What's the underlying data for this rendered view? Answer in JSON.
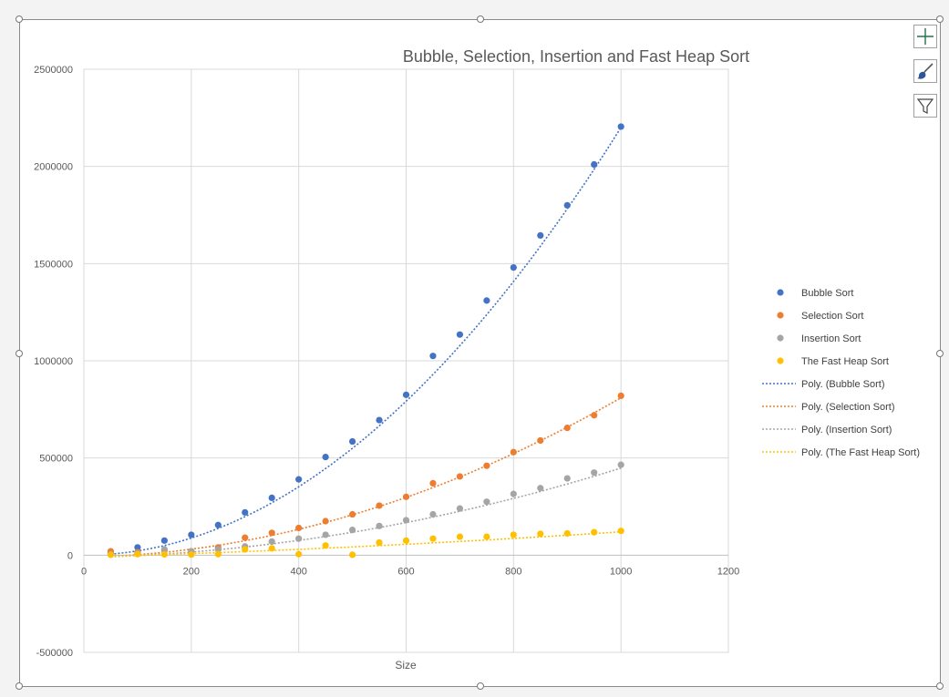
{
  "toolbar": {
    "buttons": [
      {
        "name": "chart-elements-button",
        "icon": "plus-icon",
        "color": "#217346"
      },
      {
        "name": "chart-styles-button",
        "icon": "paintbrush-icon",
        "color": "#2b579a"
      },
      {
        "name": "chart-filters-button",
        "icon": "funnel-icon",
        "color": "#444444"
      }
    ]
  },
  "chart_data": {
    "type": "scatter",
    "title": "Bubble, Selection, Insertion and Fast Heap Sort",
    "xlabel": "Size",
    "ylabel": "",
    "xlim": [
      0,
      1200
    ],
    "ylim": [
      -500000,
      2500000
    ],
    "xticks": [
      0,
      200,
      400,
      600,
      800,
      1000,
      1200
    ],
    "yticks": [
      -500000,
      0,
      500000,
      1000000,
      1500000,
      2000000,
      2500000
    ],
    "grid": true,
    "legend_position": "right",
    "series": [
      {
        "name": "Bubble Sort",
        "color": "#4472c4",
        "x": [
          50,
          100,
          150,
          200,
          250,
          300,
          350,
          400,
          450,
          500,
          550,
          600,
          650,
          700,
          750,
          800,
          850,
          900,
          950,
          1000
        ],
        "y": [
          8000,
          40000,
          75000,
          105000,
          155000,
          220000,
          295000,
          390000,
          505000,
          585000,
          695000,
          825000,
          1025000,
          1135000,
          1310000,
          1480000,
          1645000,
          1800000,
          2010000,
          2205000
        ]
      },
      {
        "name": "Selection Sort",
        "color": "#ed7d31",
        "x": [
          50,
          100,
          150,
          200,
          250,
          300,
          350,
          400,
          450,
          500,
          550,
          600,
          650,
          700,
          750,
          800,
          850,
          900,
          950,
          1000
        ],
        "y": [
          20000,
          15000,
          25000,
          20000,
          40000,
          90000,
          115000,
          140000,
          175000,
          210000,
          255000,
          300000,
          370000,
          405000,
          460000,
          530000,
          590000,
          655000,
          720000,
          820000
        ]
      },
      {
        "name": "Insertion Sort",
        "color": "#a5a5a5",
        "x": [
          50,
          100,
          150,
          200,
          250,
          300,
          350,
          400,
          450,
          500,
          550,
          600,
          650,
          700,
          750,
          800,
          850,
          900,
          950,
          1000
        ],
        "y": [
          5000,
          10000,
          30000,
          20000,
          30000,
          45000,
          70000,
          85000,
          105000,
          130000,
          150000,
          180000,
          210000,
          240000,
          275000,
          315000,
          345000,
          395000,
          425000,
          465000
        ]
      },
      {
        "name": "The Fast Heap Sort",
        "color": "#ffc000",
        "x": [
          50,
          100,
          150,
          200,
          250,
          300,
          350,
          400,
          450,
          500,
          550,
          600,
          650,
          700,
          750,
          800,
          850,
          900,
          950,
          1000
        ],
        "y": [
          2000,
          5000,
          4000,
          3000,
          5000,
          30000,
          35000,
          5000,
          50000,
          2000,
          65000,
          75000,
          85000,
          95000,
          95000,
          105000,
          110000,
          112000,
          118000,
          125000
        ]
      }
    ],
    "trendlines": [
      {
        "name": "Poly. (Bubble Sort)",
        "color": "#4472c4",
        "coef": [
          2.2,
          0,
          0
        ]
      },
      {
        "name": "Poly. (Selection Sort)",
        "color": "#ed7d31",
        "coef": [
          0.77,
          50,
          -10000
        ]
      },
      {
        "name": "Poly. (Insertion Sort)",
        "color": "#a5a5a5",
        "coef": [
          0.4,
          60,
          -12000
        ]
      },
      {
        "name": "Poly. (The Fast Heap Sort)",
        "color": "#ffc000",
        "coef": [
          0.05,
          80,
          -10000
        ]
      }
    ]
  }
}
